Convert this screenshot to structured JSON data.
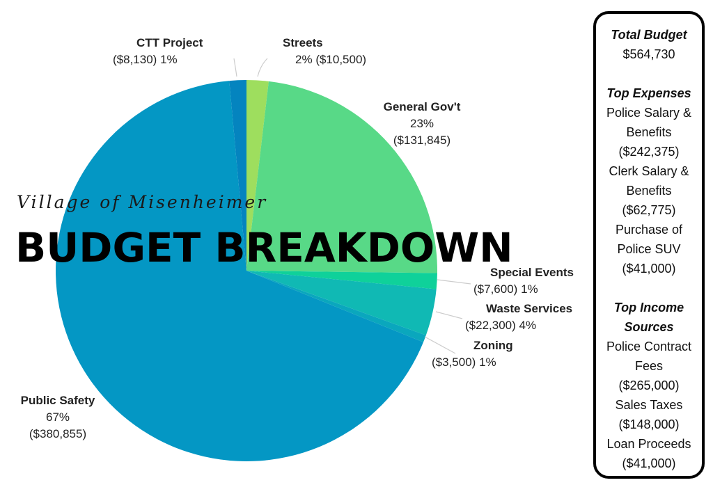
{
  "title": {
    "subtitle": "Village of Misenheimer",
    "main": "BUDGET BREAKDOWN"
  },
  "chart_data": {
    "type": "pie",
    "slices": [
      {
        "name": "Streets",
        "percent": "2%",
        "amount": "($10,500)",
        "value": 10500,
        "color": "#9ede5e"
      },
      {
        "name": "General Gov't",
        "percent": "23%",
        "amount": "($131,845)",
        "value": 131845,
        "color": "#58d987"
      },
      {
        "name": "Special Events",
        "percent": "1%",
        "amount": "($7,600)",
        "value": 7600,
        "color": "#0fd19a"
      },
      {
        "name": "Waste Services",
        "percent": "4%",
        "amount": "($22,300)",
        "value": 22300,
        "color": "#10b9b4"
      },
      {
        "name": "Zoning",
        "percent": "1%",
        "amount": "($3,500)",
        "value": 3500,
        "color": "#0aa7bd"
      },
      {
        "name": "Public Safety",
        "percent": "67%",
        "amount": "($380,855)",
        "value": 380855,
        "color": "#0497c4"
      },
      {
        "name": "CTT Project",
        "percent": "1%",
        "amount": "($8,130)",
        "value": 8130,
        "color": "#0484bf"
      }
    ]
  },
  "summary": {
    "total_heading": "Total Budget",
    "total_value": "$564,730",
    "expenses_heading": "Top Expenses",
    "expenses": [
      "Police Salary &",
      "Benefits",
      "($242,375)",
      "Clerk Salary &",
      "Benefits",
      "($62,775)",
      "Purchase of",
      "Police SUV",
      "($41,000)"
    ],
    "income_heading_1": "Top Income",
    "income_heading_2": "Sources",
    "income": [
      "Police Contract",
      "Fees",
      "($265,000)",
      "Sales Taxes",
      "($148,000)",
      "Loan Proceeds",
      "($41,000)"
    ]
  }
}
